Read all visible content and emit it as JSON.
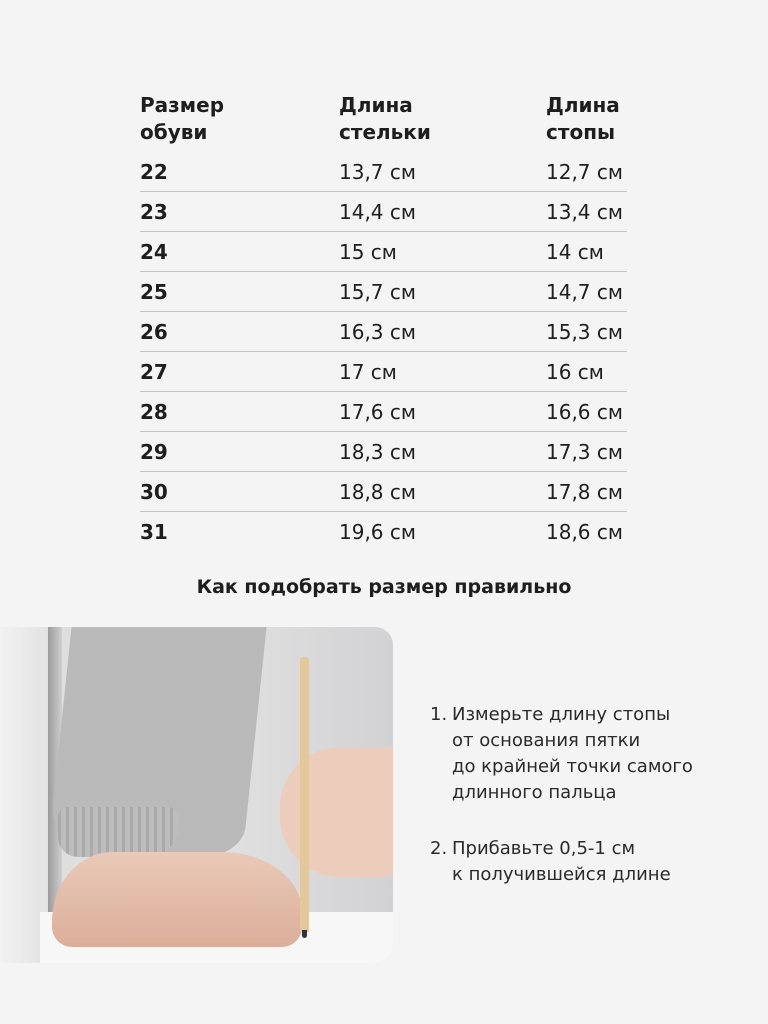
{
  "table": {
    "headers": [
      "Размер\nобуви",
      "Длина\nстельки",
      "Длина\nстопы"
    ],
    "rows": [
      [
        "22",
        "13,7 см",
        "12,7 см"
      ],
      [
        "23",
        "14,4 см",
        "13,4 см"
      ],
      [
        "24",
        "15 см",
        "14 см"
      ],
      [
        "25",
        "15,7 см",
        "14,7 см"
      ],
      [
        "26",
        "16,3 см",
        "15,3 см"
      ],
      [
        "27",
        "17 см",
        "16 см"
      ],
      [
        "28",
        "17,6 см",
        "16,6 см"
      ],
      [
        "29",
        "18,3 см",
        "17,3 см"
      ],
      [
        "30",
        "18,8 см",
        "17,8 см"
      ],
      [
        "31",
        "19,6 см",
        "18,6 см"
      ]
    ]
  },
  "section_title": "Как подобрать размер правильно",
  "steps": [
    {
      "num": "1.",
      "text": "Измерьте длину стопы\nот основания пятки\nдо крайней точки самого\nдлинного пальца"
    },
    {
      "num": "2.",
      "text": "Прибавьте 0,5-1 см\nк получившейся длине"
    }
  ]
}
